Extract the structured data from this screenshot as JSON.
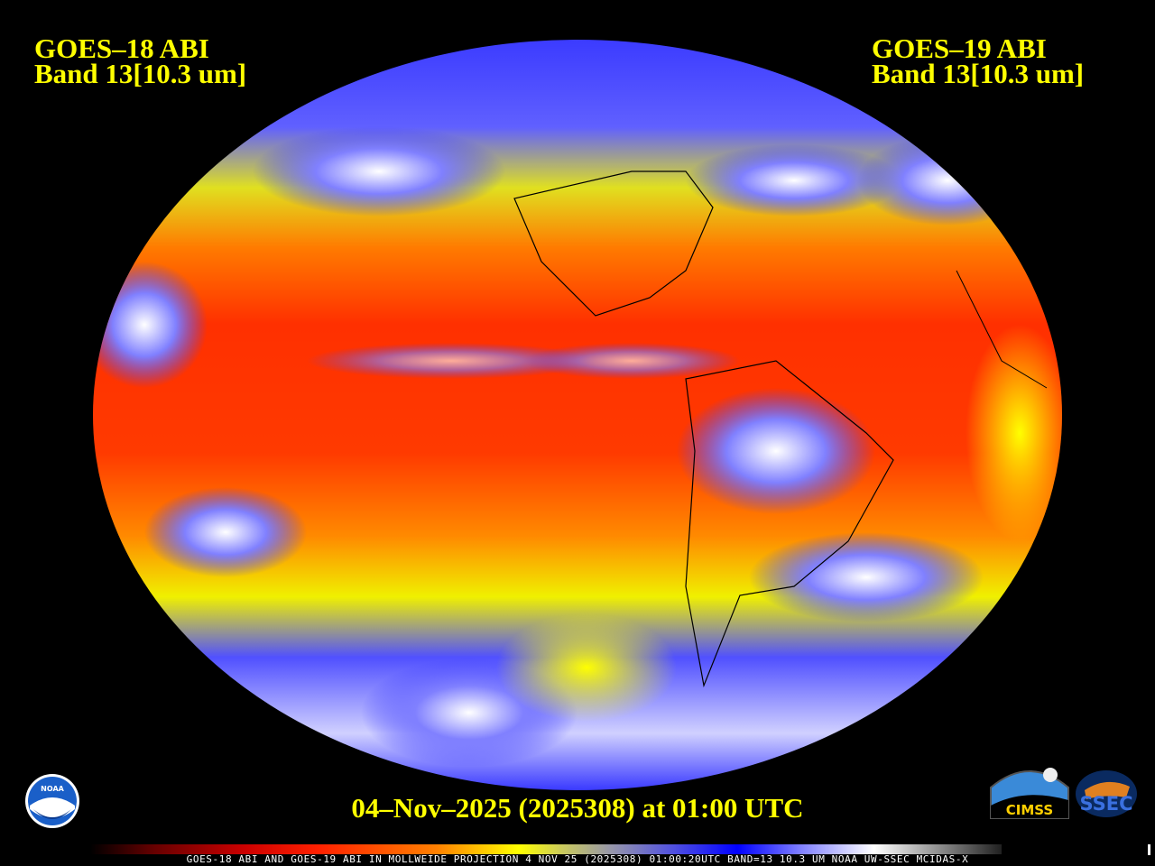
{
  "header": {
    "left": {
      "line1": "GOES–18 ABI",
      "line2": "Band 13[10.3 um]"
    },
    "right": {
      "line1": "GOES–19 ABI",
      "line2": "Band 13[10.3 um]"
    }
  },
  "timestamp": "04–Nov–2025 (2025308) at 01:00 UTC",
  "footer": "GOES-18 ABI AND GOES-19 ABI IN MOLLWEIDE PROJECTION 4 NOV 25 (2025308) 01:00:20UTC BAND=13 10.3 UM NOAA UW-SSEC MCIDAS-X",
  "map": {
    "projection": "Mollweide",
    "band": 13,
    "wavelength_um": 10.3
  },
  "logos": {
    "noaa": "NOAA",
    "cimss": "CIMSS",
    "ssec": "SSEC"
  },
  "colors": {
    "title": "#ffff00",
    "background": "#000000"
  }
}
